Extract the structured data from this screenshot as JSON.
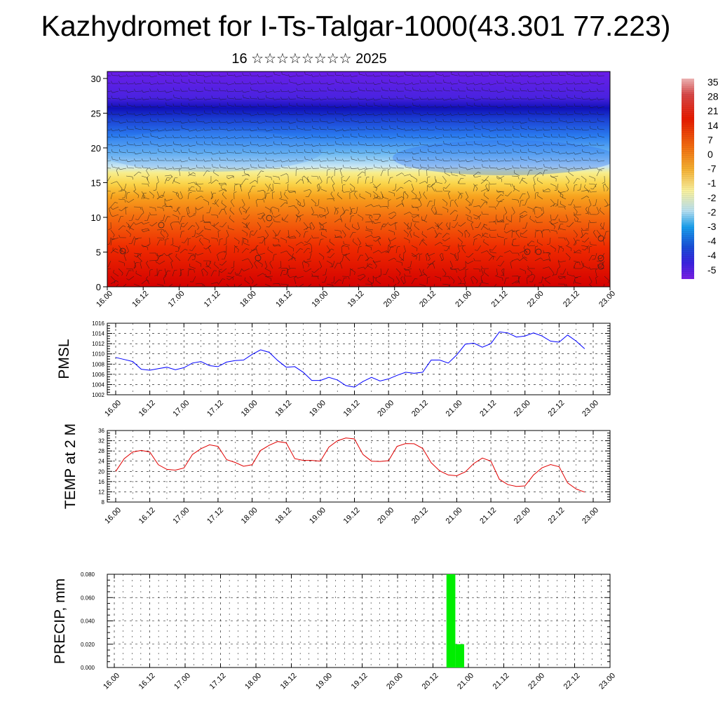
{
  "page": {
    "title": "Kazhydromet for I-Ts-Talgar-1000(43.301 77.223)",
    "subtitle": "16 ☆☆☆☆☆☆☆☆ 2025"
  },
  "chart_data": [
    {
      "type": "heatmap",
      "x_tick_labels": [
        "16.00",
        "16.12",
        "17.00",
        "17.12",
        "18.00",
        "18.12",
        "19.00",
        "19.12",
        "20.00",
        "20.12",
        "21.00",
        "21.12",
        "22.00",
        "22.12",
        "23.00"
      ],
      "y_ticks": [
        0,
        5,
        10,
        15,
        20,
        25,
        30
      ],
      "ylim": [
        0,
        31
      ],
      "colorbar_labels": [
        "35",
        "28",
        "21",
        "14",
        "7",
        "0",
        "-7",
        "-1",
        "-2",
        "-2",
        "-3",
        "-4",
        "-4",
        "-5"
      ],
      "colors": {
        "warm": "#e00000",
        "orange": "#f59a10",
        "yellow": "#f7ec7a",
        "light_blue": "#a9d8ee",
        "blue": "#2a7cf0",
        "navy": "#1420c8",
        "violet": "#6a1ee8"
      }
    },
    {
      "type": "line",
      "ylabel": "PMSL",
      "x_tick_labels": [
        "16.00",
        "16.12",
        "17.00",
        "17.12",
        "18.00",
        "18.12",
        "19.00",
        "19.12",
        "20.00",
        "20.12",
        "21.00",
        "21.12",
        "22.00",
        "22.12",
        "23.00"
      ],
      "y_ticks": [
        1002,
        1004,
        1006,
        1008,
        1010,
        1012,
        1014,
        1016
      ],
      "ylim": [
        1002,
        1016
      ],
      "grid": true,
      "color": "#0000ff",
      "x": [
        0,
        3,
        6,
        9,
        12,
        15,
        18,
        21,
        24,
        27,
        30,
        33,
        36,
        39,
        42,
        45,
        48,
        51,
        54,
        57,
        60,
        63,
        66,
        69,
        72,
        75,
        78,
        81,
        84,
        87,
        90,
        93,
        96,
        99,
        102,
        105,
        108,
        111,
        114,
        117,
        120,
        123,
        126,
        129,
        132,
        135,
        138,
        141,
        144,
        147,
        150,
        153,
        156,
        159,
        162,
        165
      ],
      "values": [
        1009.3,
        1008.9,
        1008.5,
        1007.0,
        1006.8,
        1007.1,
        1007.4,
        1006.9,
        1007.3,
        1008.2,
        1008.5,
        1007.7,
        1007.5,
        1008.4,
        1008.7,
        1008.8,
        1009.9,
        1010.8,
        1010.3,
        1008.7,
        1007.4,
        1007.5,
        1006.4,
        1004.8,
        1004.8,
        1005.4,
        1004.9,
        1003.8,
        1003.5,
        1004.6,
        1005.4,
        1004.7,
        1005.1,
        1005.8,
        1006.4,
        1006.2,
        1006.4,
        1008.8,
        1008.8,
        1008.2,
        1009.8,
        1011.9,
        1012.1,
        1011.3,
        1012.0,
        1014.3,
        1014.1,
        1013.3,
        1013.5,
        1014.1,
        1013.5,
        1012.5,
        1012.3,
        1013.7,
        1012.5,
        1011.0
      ]
    },
    {
      "type": "line",
      "ylabel": "TEMP at 2 M",
      "x_tick_labels": [
        "16.00",
        "16.12",
        "17.00",
        "17.12",
        "18.00",
        "18.12",
        "19.00",
        "19.12",
        "20.00",
        "20.12",
        "21.00",
        "21.12",
        "22.00",
        "22.12",
        "23.00"
      ],
      "y_ticks": [
        8,
        12,
        16,
        20,
        24,
        28,
        32,
        36
      ],
      "ylim": [
        8,
        36
      ],
      "grid": true,
      "color": "#e00000",
      "x": [
        0,
        3,
        6,
        9,
        12,
        15,
        18,
        21,
        24,
        27,
        30,
        33,
        36,
        39,
        42,
        45,
        48,
        51,
        54,
        57,
        60,
        63,
        66,
        69,
        72,
        75,
        78,
        81,
        84,
        87,
        90,
        93,
        96,
        99,
        102,
        105,
        108,
        111,
        114,
        117,
        120,
        123,
        126,
        129,
        132,
        135,
        138,
        141,
        144,
        147,
        150,
        153,
        156,
        159,
        162,
        165
      ],
      "values": [
        20.0,
        25.0,
        27.6,
        28.2,
        27.6,
        22.6,
        20.8,
        20.5,
        21.3,
        26.6,
        28.9,
        30.4,
        29.8,
        24.6,
        23.5,
        22.0,
        22.6,
        28.2,
        30.2,
        31.7,
        31.2,
        25.0,
        24.3,
        24.3,
        24.0,
        29.5,
        32.0,
        33.1,
        32.7,
        26.6,
        24.0,
        23.9,
        24.2,
        29.8,
        30.9,
        30.8,
        29.0,
        23.4,
        20.2,
        18.6,
        18.3,
        19.8,
        23.1,
        25.2,
        24.0,
        16.9,
        14.8,
        14.1,
        14.3,
        18.6,
        21.4,
        22.7,
        21.8,
        15.5,
        13.1,
        11.9
      ]
    },
    {
      "type": "bar",
      "ylabel": "PRECIP, mm",
      "x_tick_labels": [
        "16.00",
        "16.12",
        "17.00",
        "17.12",
        "18.00",
        "18.12",
        "19.00",
        "19.12",
        "20.00",
        "20.12",
        "21.00",
        "21.12",
        "22.00",
        "22.12",
        "23.00"
      ],
      "y_tick_labels": [
        "0.000",
        "0.020",
        "0.040",
        "0.060",
        "0.080"
      ],
      "ylim": [
        0,
        0.08
      ],
      "grid": true,
      "color": "#00ee00",
      "bars": [
        {
          "x_start": 114,
          "x_end": 117,
          "value": 0.08
        },
        {
          "x_start": 117,
          "x_end": 120,
          "value": 0.02
        }
      ]
    }
  ]
}
